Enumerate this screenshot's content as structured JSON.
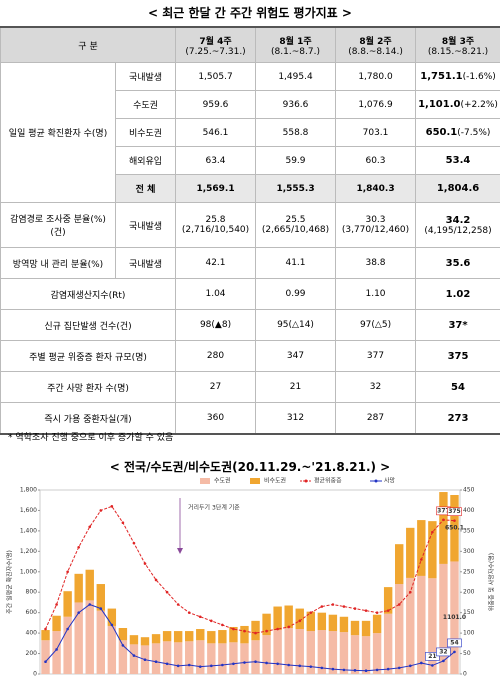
{
  "title": "< 최근 한달 간 주간 위험도 평가지표 >",
  "table": {
    "header": {
      "label": "구 분",
      "columns": [
        {
          "week": "7월 4주",
          "range": "(7.25.~7.31.)"
        },
        {
          "week": "8월 1주",
          "range": "(8.1.~8.7.)"
        },
        {
          "week": "8월 2주",
          "range": "(8.8.~8.14.)"
        },
        {
          "week": "8월 3주",
          "range": "(8.15.~8.21.)"
        }
      ]
    },
    "rows": [
      {
        "group": "일일 평균 확진환자 수(명)",
        "item": "국내발생",
        "values": [
          "1,505.7",
          "1,495.4",
          "1,780.0",
          "1,751.1"
        ],
        "change": "(-1.6%)"
      },
      {
        "item": "수도권",
        "values": [
          "959.6",
          "936.6",
          "1,076.9",
          "1,101.0"
        ],
        "change": "(+2.2%)"
      },
      {
        "item": "비수도권",
        "values": [
          "546.1",
          "558.8",
          "703.1",
          "650.1"
        ],
        "change": "(-7.5%)"
      },
      {
        "item": "해외유입",
        "values": [
          "63.4",
          "59.9",
          "60.3",
          "53.4"
        ]
      },
      {
        "item": "전 체",
        "values": [
          "1,569.1",
          "1,555.3",
          "1,840.3",
          "1,804.6"
        ]
      },
      {
        "group": "감염경로 조사중 분율(%)(건)",
        "item": "국내발생",
        "values": [
          "25.8",
          "25.5",
          "30.3",
          "34.2"
        ],
        "details": [
          "(2,716/10,540)",
          "(2,665/10,468)",
          "(3,770/12,460)",
          "(4,195/12,258)"
        ]
      },
      {
        "group": "방역망 내 관리 분율(%)",
        "item": "국내발생",
        "values": [
          "42.1",
          "41.1",
          "38.8",
          "35.6"
        ]
      },
      {
        "group": "감염재생산지수(Rt)",
        "values": [
          "1.04",
          "0.99",
          "1.10",
          "1.02"
        ]
      },
      {
        "group": "신규 집단발생 건수(건)",
        "values": [
          "98(▲8)",
          "95(△14)",
          "97(△5)",
          "37*"
        ]
      },
      {
        "group": "주별 평균 위중증 환자 규모(명)",
        "values": [
          "280",
          "347",
          "377",
          "375"
        ]
      },
      {
        "group": "주간 사망 환자 수(명)",
        "values": [
          "27",
          "21",
          "32",
          "54"
        ]
      },
      {
        "group": "즉시 가용 중환자실(개)",
        "values": [
          "360",
          "312",
          "287",
          "273"
        ]
      }
    ],
    "footnote": "* 역학조사 진행 중으로 이후 증가할 수 있음"
  },
  "chart_data": {
    "type": "bar",
    "title": "< 전국/수도권/비수도권(20.11.29.~'21.8.21.) >",
    "y_label": "주간 일평균 확진자수(명)",
    "y2_label": "위중증 및 사망자수(명)",
    "annotations": [
      "거리두기 3단계 기준"
    ],
    "categories": [
      null,
      null,
      null,
      null,
      null,
      null,
      null,
      null,
      null,
      null,
      null,
      null,
      null,
      null,
      null,
      null,
      null,
      null,
      null,
      null,
      null,
      null,
      null,
      null,
      null,
      null,
      null,
      null,
      null,
      null,
      null,
      null,
      null,
      null,
      null,
      null,
      null,
      null
    ],
    "ylim": [
      0,
      1800
    ],
    "yticks": [
      0,
      200,
      400,
      600,
      800,
      {
        "value": 1000,
        "label": "1,000"
      },
      {
        "value": 1200,
        "label": "1,200"
      },
      {
        "value": 1400,
        "label": "1,400"
      },
      {
        "value": 1600,
        "label": "1,600"
      },
      {
        "value": 1800,
        "label": "1,800"
      }
    ],
    "y2lim": [
      0,
      450
    ],
    "y2ticks": [
      0,
      50,
      100,
      150,
      200,
      250,
      300,
      350,
      400,
      450
    ],
    "legend": "top",
    "series": [
      {
        "name": "수도권",
        "type": "bar",
        "color": "#f5bba6",
        "values": [
          330,
          420,
          560,
          700,
          720,
          620,
          470,
          330,
          290,
          280,
          300,
          320,
          310,
          320,
          330,
          300,
          300,
          310,
          300,
          330,
          380,
          430,
          450,
          440,
          420,
          430,
          420,
          410,
          380,
          370,
          400,
          590,
          880,
          940,
          959.6,
          936.6,
          1076.9,
          1101.0
        ],
        "value_labels": [
          null,
          null,
          null,
          null,
          null,
          null,
          null,
          null,
          null,
          null,
          null,
          null,
          null,
          null,
          null,
          null,
          null,
          null,
          null,
          null,
          null,
          null,
          null,
          null,
          null,
          null,
          null,
          null,
          null,
          null,
          null,
          null,
          null,
          null,
          null,
          null,
          null,
          "1101.0"
        ]
      },
      {
        "name": "비수도권",
        "type": "bar",
        "color": "#f0a630",
        "values": [
          100,
          150,
          250,
          280,
          300,
          260,
          170,
          120,
          90,
          80,
          90,
          100,
          110,
          100,
          110,
          120,
          130,
          150,
          170,
          190,
          210,
          230,
          220,
          200,
          190,
          170,
          160,
          150,
          140,
          150,
          180,
          260,
          390,
          490,
          546.1,
          558.8,
          703.1,
          650.1
        ],
        "value_labels": [
          null,
          null,
          null,
          null,
          null,
          null,
          null,
          null,
          null,
          null,
          null,
          null,
          null,
          null,
          null,
          null,
          null,
          null,
          null,
          null,
          null,
          null,
          null,
          null,
          null,
          null,
          null,
          null,
          null,
          null,
          null,
          null,
          null,
          null,
          null,
          null,
          null,
          "650.1"
        ]
      },
      {
        "name": "평균위중증",
        "type": "line",
        "axis": "y2",
        "dashed": true,
        "color": "#e02424",
        "values": [
          110,
          170,
          250,
          310,
          360,
          400,
          410,
          370,
          320,
          270,
          230,
          200,
          170,
          150,
          140,
          130,
          120,
          110,
          105,
          100,
          105,
          110,
          115,
          130,
          150,
          165,
          170,
          165,
          160,
          155,
          150,
          155,
          170,
          200,
          280,
          347,
          377,
          375
        ],
        "value_labels": [
          null,
          null,
          null,
          null,
          null,
          null,
          null,
          null,
          null,
          null,
          null,
          null,
          null,
          null,
          null,
          null,
          null,
          null,
          null,
          null,
          null,
          null,
          null,
          null,
          null,
          null,
          null,
          null,
          null,
          null,
          null,
          null,
          null,
          null,
          null,
          null,
          "377",
          "375"
        ]
      },
      {
        "name": "사망",
        "type": "line",
        "axis": "y2",
        "dashed": false,
        "color": "#2233c4",
        "values": [
          30,
          60,
          110,
          150,
          170,
          160,
          120,
          70,
          45,
          35,
          30,
          25,
          20,
          22,
          18,
          20,
          22,
          25,
          28,
          30,
          27,
          25,
          22,
          20,
          18,
          15,
          12,
          10,
          9,
          8,
          10,
          12,
          15,
          20,
          27,
          21,
          32,
          54
        ],
        "value_labels": [
          null,
          null,
          null,
          null,
          null,
          null,
          null,
          null,
          null,
          null,
          null,
          null,
          null,
          null,
          null,
          null,
          null,
          null,
          null,
          null,
          null,
          null,
          null,
          null,
          null,
          null,
          null,
          null,
          null,
          null,
          null,
          null,
          null,
          null,
          null,
          "21",
          "32",
          "54"
        ]
      }
    ]
  }
}
